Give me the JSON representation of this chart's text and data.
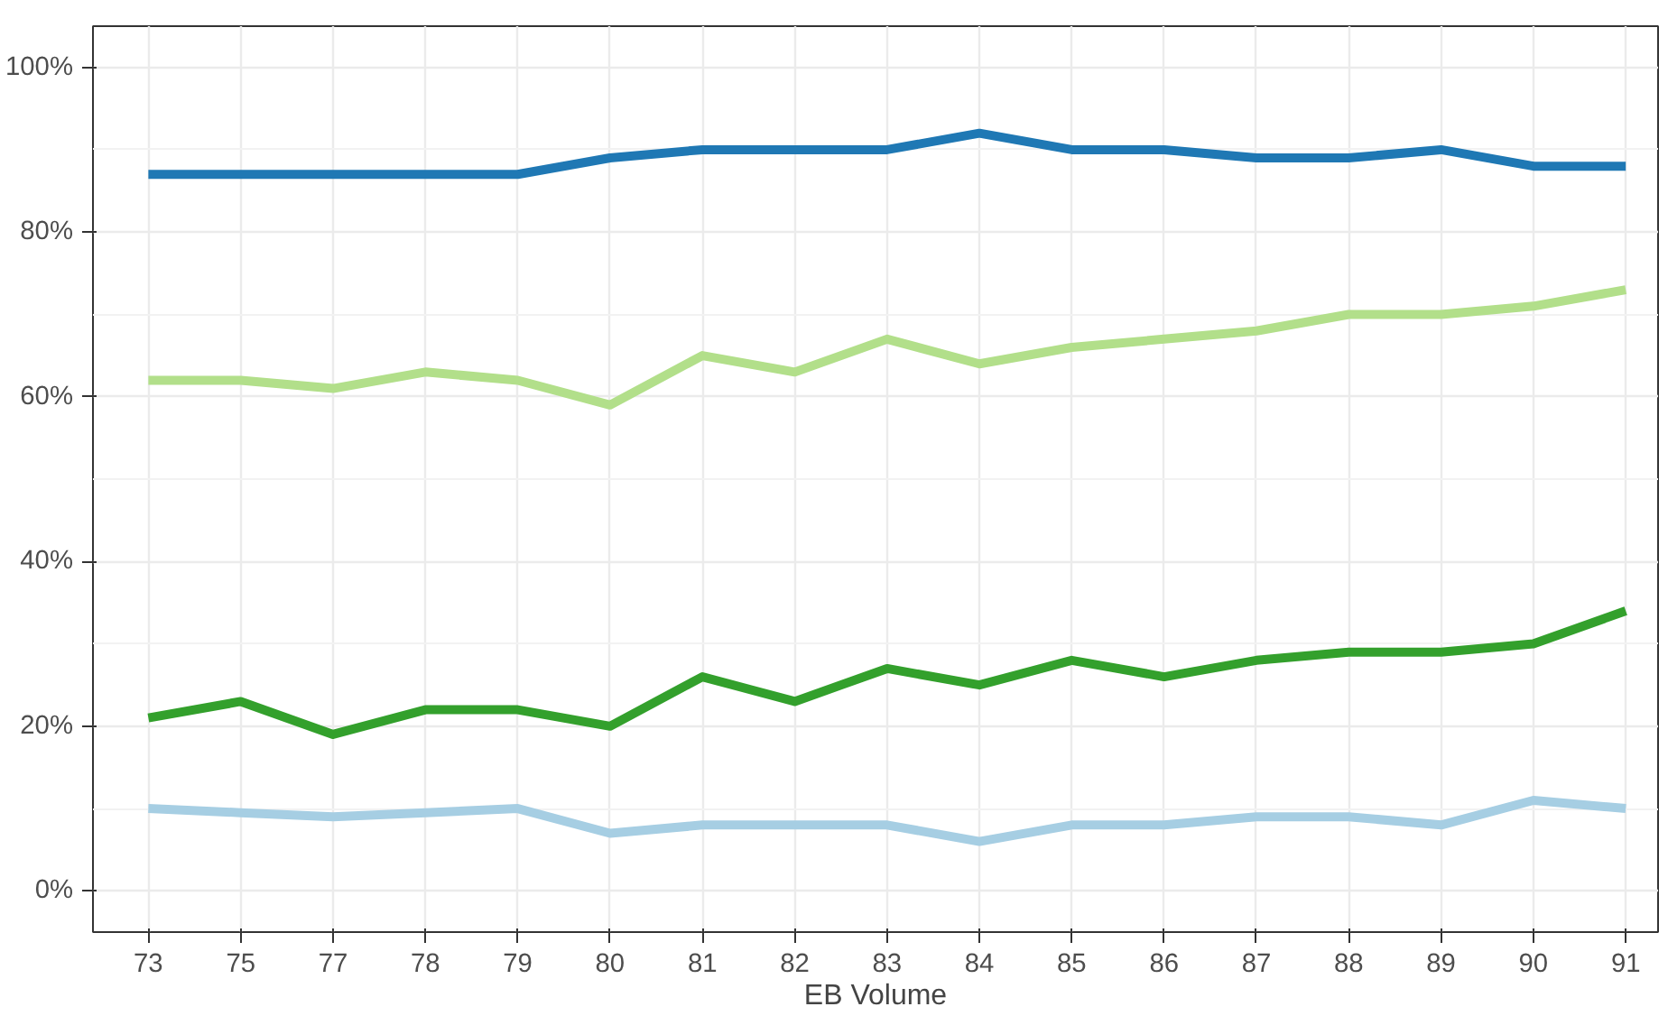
{
  "chart_data": {
    "type": "line",
    "xlabel": "EB Volume",
    "categories": [
      "73",
      "75",
      "77",
      "78",
      "79",
      "80",
      "81",
      "82",
      "83",
      "84",
      "85",
      "86",
      "87",
      "88",
      "89",
      "90",
      "91"
    ],
    "series": [
      {
        "color": "#1f78b4",
        "values": [
          87,
          87,
          87,
          87,
          87,
          89,
          90,
          90,
          90,
          92,
          90,
          90,
          89,
          89,
          90,
          88,
          88
        ]
      },
      {
        "color": "#b2df8a",
        "values": [
          62,
          62,
          61,
          63,
          62,
          59,
          65,
          63,
          67,
          64,
          66,
          67,
          68,
          70,
          70,
          71,
          73
        ]
      },
      {
        "color": "#33a02c",
        "values": [
          21,
          23,
          19,
          22,
          22,
          20,
          26,
          23,
          27,
          25,
          28,
          26,
          28,
          29,
          29,
          30,
          34
        ]
      },
      {
        "color": "#a6cee3",
        "values": [
          10,
          9.5,
          9,
          9.5,
          10,
          7,
          8,
          8,
          8,
          6,
          8,
          8,
          9,
          9,
          8,
          11,
          10
        ]
      }
    ],
    "ylim": [
      -5,
      105
    ],
    "yticks": [
      {
        "value": 0,
        "label": "0%"
      },
      {
        "value": 20,
        "label": "20%"
      },
      {
        "value": 40,
        "label": "40%"
      },
      {
        "value": 60,
        "label": "60%"
      },
      {
        "value": 80,
        "label": "80%"
      },
      {
        "value": 100,
        "label": "100%"
      }
    ],
    "grid": true,
    "line_style": "solid"
  }
}
